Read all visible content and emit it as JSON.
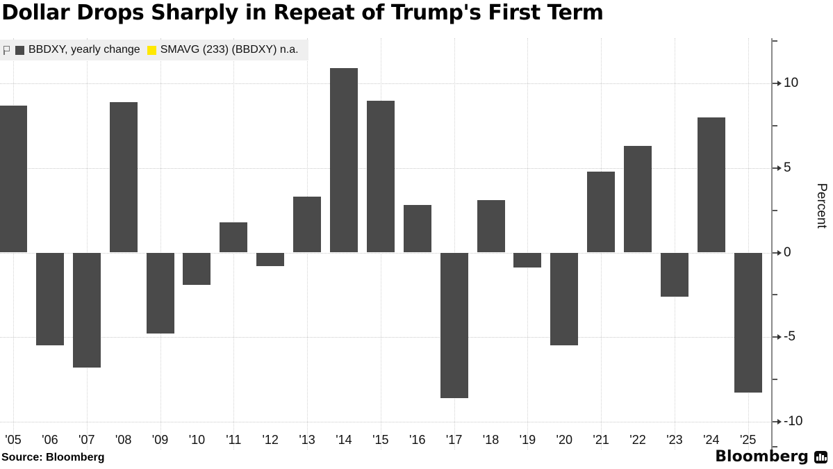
{
  "title": "Dollar Drops Sharply in Repeat of Trump's First Term",
  "legend": {
    "series1": {
      "label": "BBDXY, yearly change",
      "color": "#4a4a4a"
    },
    "series2": {
      "label": "SMAVG (233) (BBDXY) n.a.",
      "color": "#ffe800"
    }
  },
  "axis": {
    "y_label": "Percent",
    "y_major_ticks": [
      10,
      5,
      0,
      -5,
      -10
    ],
    "y_minor_ticks": [
      12.5,
      7.5,
      2.5,
      -2.5,
      -7.5,
      -11.5
    ]
  },
  "footer": {
    "source": "Source: Bloomberg",
    "brand": "Bloomberg"
  },
  "chart_data": {
    "type": "bar",
    "title": "Dollar Drops Sharply in Repeat of Trump's First Term",
    "series_name": "BBDXY, yearly change",
    "categories": [
      "'05",
      "'06",
      "'07",
      "'08",
      "'09",
      "'10",
      "'11",
      "'12",
      "'13",
      "'14",
      "'15",
      "'16",
      "'17",
      "'18",
      "'19",
      "'20",
      "'21",
      "'22",
      "'23",
      "'24",
      "'25"
    ],
    "values": [
      8.7,
      -5.5,
      -6.8,
      8.9,
      -4.8,
      -1.9,
      1.8,
      -0.8,
      3.3,
      10.9,
      9.0,
      2.8,
      -8.6,
      3.1,
      -0.9,
      -5.5,
      4.8,
      6.3,
      -2.6,
      8.0,
      -8.3
    ],
    "xlabel": "",
    "ylabel": "Percent",
    "ylim": [
      -11.6,
      12.6
    ],
    "grid": "dotted",
    "legend_position": "top-left",
    "bar_color": "#4a4a4a",
    "unused_series": "SMAVG (233) (BBDXY) n.a."
  }
}
